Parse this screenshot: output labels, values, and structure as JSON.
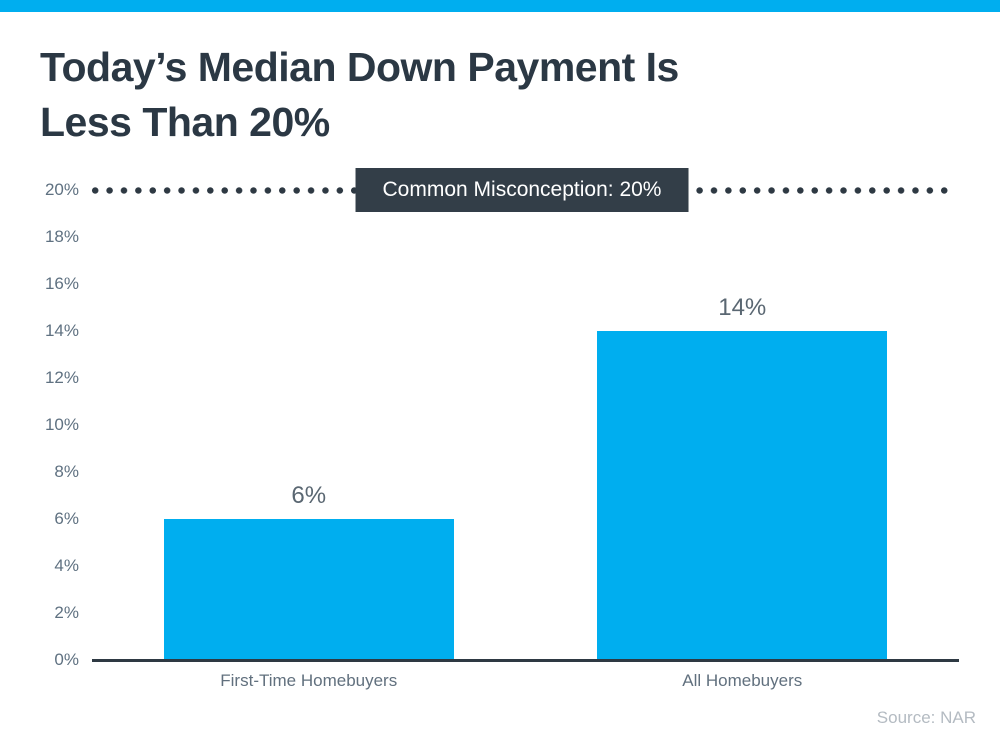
{
  "page": {
    "accent_color": "#00AEEF",
    "background": "#FFFFFF"
  },
  "header": {
    "title_lines": [
      "Today’s Median Down Payment Is",
      "Less Than 20%"
    ],
    "title_color": "#2B3844"
  },
  "chart_data": {
    "type": "bar",
    "title": "Today’s Median Down Payment Is Less Than 20%",
    "categories": [
      "First-Time Homebuyers",
      "All Homebuyers"
    ],
    "values": [
      6,
      14
    ],
    "value_labels": [
      "6%",
      "14%"
    ],
    "bar_color": "#00AEEF",
    "xlabel": "",
    "ylabel": "",
    "ylim": [
      0,
      20
    ],
    "grid": false,
    "legend": false,
    "yticks": [
      {
        "value": 0,
        "label": "0%"
      },
      {
        "value": 2,
        "label": "2%"
      },
      {
        "value": 4,
        "label": "4%"
      },
      {
        "value": 6,
        "label": "6%"
      },
      {
        "value": 8,
        "label": "8%"
      },
      {
        "value": 10,
        "label": "10%"
      },
      {
        "value": 12,
        "label": "12%"
      },
      {
        "value": 14,
        "label": "14%"
      },
      {
        "value": 16,
        "label": "16%"
      },
      {
        "value": 18,
        "label": "18%"
      },
      {
        "value": 20,
        "label": "20%"
      }
    ],
    "reference_line": {
      "value": 20,
      "style": "round-dotted",
      "color": "#2E3943",
      "label": "Common Misconception: 20%",
      "label_bg": "#333E48",
      "label_text_color": "#FFFFFF"
    },
    "axis_color": "#2E3943",
    "tick_label_color": "#5F7181",
    "category_label_color": "#61707E",
    "value_label_color": "#5A6772",
    "source": "Source: NAR",
    "source_color": "#B4BBC2"
  }
}
